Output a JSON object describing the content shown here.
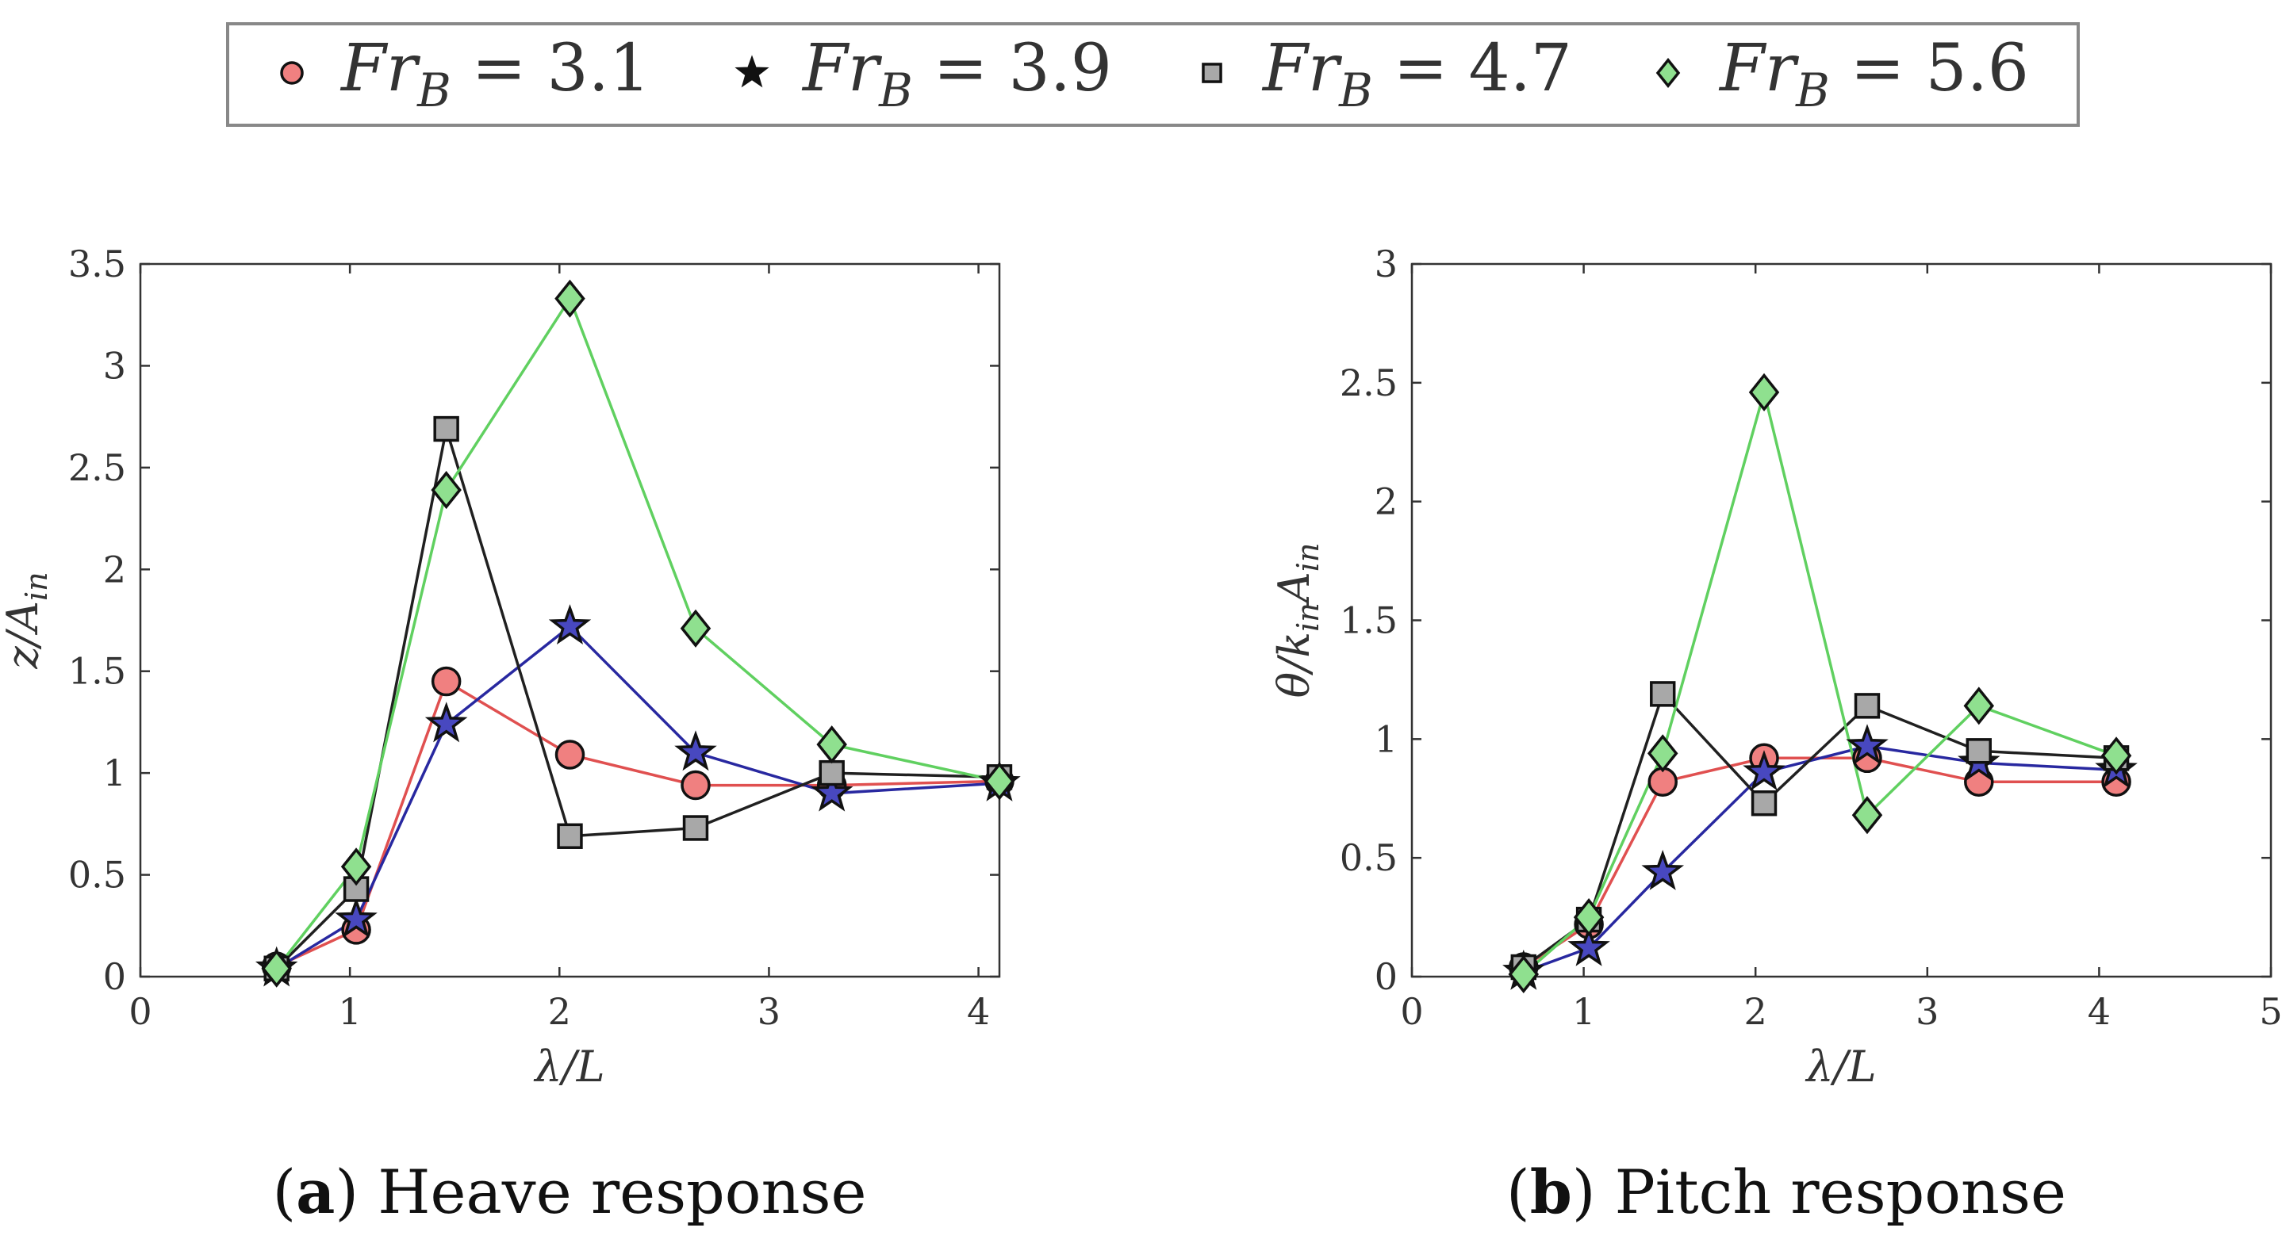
{
  "legend": {
    "entries": [
      {
        "label_main": "Fr",
        "label_sub": "B",
        "label_eq": " = 3.1",
        "marker": "circle",
        "color": "#f08080"
      },
      {
        "label_main": "Fr",
        "label_sub": "B",
        "label_eq": " = 3.9",
        "marker": "star",
        "color": "#3c3ca8"
      },
      {
        "label_main": "Fr",
        "label_sub": "B",
        "label_eq": " = 4.7",
        "marker": "square",
        "color": "#a8a8a8"
      },
      {
        "label_main": "Fr",
        "label_sub": "B",
        "label_eq": " = 5.6",
        "marker": "diamond",
        "color": "#8fe08f"
      }
    ]
  },
  "chart_data": [
    {
      "type": "line",
      "id": "heave",
      "caption_letter": "a",
      "caption_text": " Heave response",
      "xlabel": "λ/L",
      "ylabel_main": "z/A",
      "ylabel_sub": "in",
      "xlim": [
        0,
        4.1
      ],
      "ylim": [
        0,
        3.5
      ],
      "xticks": [
        0,
        1,
        2,
        3,
        4
      ],
      "yticks": [
        0,
        0.5,
        1,
        1.5,
        2,
        2.5,
        3,
        3.5
      ],
      "xtick_labels": [
        "0",
        "1",
        "2",
        "3",
        "4"
      ],
      "ytick_labels": [
        "0",
        "0.5",
        "1",
        "1.5",
        "2",
        "2.5",
        "3",
        "3.5"
      ],
      "series": [
        {
          "name": "FrB = 3.1",
          "line_color": "#e05050",
          "face": "#f08080",
          "marker": "circle",
          "x": [
            0.65,
            1.03,
            1.46,
            2.05,
            2.65,
            3.3,
            4.1
          ],
          "y": [
            0.05,
            0.23,
            1.45,
            1.09,
            0.94,
            0.94,
            0.96
          ]
        },
        {
          "name": "FrB = 3.9",
          "line_color": "#2828a0",
          "face": "#4848c0",
          "marker": "star",
          "x": [
            0.65,
            1.03,
            1.46,
            2.05,
            2.65,
            3.3,
            4.1
          ],
          "y": [
            0.04,
            0.28,
            1.24,
            1.72,
            1.1,
            0.9,
            0.95
          ]
        },
        {
          "name": "FrB = 4.7",
          "line_color": "#202020",
          "face": "#a8a8a8",
          "marker": "square",
          "x": [
            0.65,
            1.03,
            1.46,
            2.05,
            2.65,
            3.3,
            4.1
          ],
          "y": [
            0.04,
            0.43,
            2.69,
            0.69,
            0.73,
            1.0,
            0.98
          ]
        },
        {
          "name": "FrB = 5.6",
          "line_color": "#60d060",
          "face": "#8fe08f",
          "marker": "diamond",
          "x": [
            0.65,
            1.03,
            1.46,
            2.05,
            2.65,
            3.3,
            4.1
          ],
          "y": [
            0.04,
            0.54,
            2.39,
            3.33,
            1.71,
            1.14,
            0.96
          ]
        }
      ]
    },
    {
      "type": "line",
      "id": "pitch",
      "caption_letter": "b",
      "caption_text": " Pitch response",
      "xlabel": "λ/L",
      "ylabel_main": "θ/k",
      "ylabel_sub1": "in",
      "ylabel_mid": "A",
      "ylabel_sub2": "in",
      "xlim": [
        0,
        5
      ],
      "ylim": [
        0,
        3
      ],
      "xticks": [
        0,
        1,
        2,
        3,
        4,
        5
      ],
      "yticks": [
        0,
        0.5,
        1,
        1.5,
        2,
        2.5,
        3
      ],
      "xtick_labels": [
        "0",
        "1",
        "2",
        "3",
        "4",
        "5"
      ],
      "ytick_labels": [
        "0",
        "0.5",
        "1",
        "1.5",
        "2",
        "2.5",
        "3"
      ],
      "series": [
        {
          "name": "FrB = 3.1",
          "line_color": "#e05050",
          "face": "#f08080",
          "marker": "circle",
          "x": [
            0.65,
            1.03,
            1.46,
            2.05,
            2.65,
            3.3,
            4.1
          ],
          "y": [
            0.04,
            0.22,
            0.82,
            0.92,
            0.92,
            0.82,
            0.82
          ]
        },
        {
          "name": "FrB = 3.9",
          "line_color": "#2828a0",
          "face": "#4848c0",
          "marker": "star",
          "x": [
            0.65,
            1.03,
            1.46,
            2.05,
            2.65,
            3.3,
            4.1
          ],
          "y": [
            0.02,
            0.12,
            0.44,
            0.86,
            0.97,
            0.9,
            0.87
          ]
        },
        {
          "name": "FrB = 4.7",
          "line_color": "#202020",
          "face": "#a8a8a8",
          "marker": "square",
          "x": [
            0.65,
            1.03,
            1.46,
            2.05,
            2.65,
            3.3,
            4.1
          ],
          "y": [
            0.04,
            0.24,
            1.19,
            0.73,
            1.14,
            0.95,
            0.92
          ]
        },
        {
          "name": "FrB = 5.6",
          "line_color": "#60d060",
          "face": "#8fe08f",
          "marker": "diamond",
          "x": [
            0.65,
            1.03,
            1.46,
            2.05,
            2.65,
            3.3,
            4.1
          ],
          "y": [
            0.01,
            0.25,
            0.94,
            2.46,
            0.68,
            1.14,
            0.93
          ]
        }
      ]
    }
  ]
}
